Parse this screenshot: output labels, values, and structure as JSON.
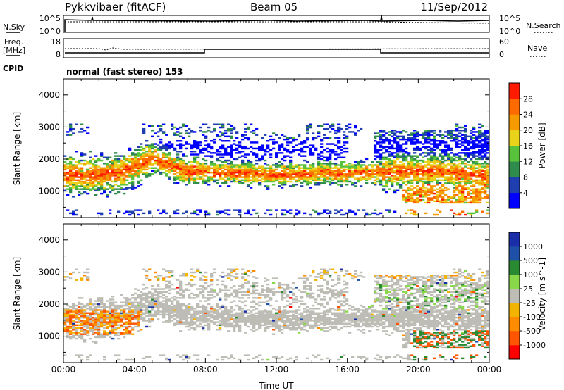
{
  "header": {
    "station": "Pykkvibaer (fitACF)",
    "beam": "Beam 05",
    "date": "11/Sep/2012",
    "cpid_label": "CPID",
    "cpid_value": "normal (fast stereo) 153"
  },
  "noise_panel": {
    "left_label": "N.Sky",
    "left_ticks": [
      "10^5",
      "10^0"
    ],
    "right_label": "N.Search",
    "right_ticks": [
      "10^5",
      "10^0"
    ]
  },
  "freq_panel": {
    "left_label_1": "Freq.",
    "left_label_2": "[MHz]",
    "left_ticks": [
      "18",
      "8"
    ],
    "right_label": "Nave",
    "right_ticks": [
      "60",
      "0"
    ]
  },
  "colors": {
    "power_scale": [
      "#0000ff",
      "#1f3fb0",
      "#2f8c4c",
      "#58c23c",
      "#e8d21a",
      "#f59a00",
      "#ff6a00",
      "#ff1a00"
    ],
    "velocity_scale": [
      "#ff0000",
      "#ff5500",
      "#ff8c00",
      "#f2b400",
      "#bdbdb5",
      "#88d84a",
      "#2a8a32",
      "#1f50a8",
      "#1a2eaa"
    ],
    "velocity_gray": "#c8c8c0"
  },
  "chart_data": [
    {
      "type": "heatmap",
      "name": "power",
      "xlabel": "",
      "ylabel": "Slant Range [km]",
      "x_ticks": [
        "00:00",
        "04:00",
        "08:00",
        "12:00",
        "16:00",
        "20:00",
        "00:00"
      ],
      "x_range_hours": [
        0,
        24
      ],
      "y_ticks": [
        "1000",
        "2000",
        "3000",
        "4000"
      ],
      "y_range_km": [
        180,
        4500
      ],
      "colorbar_label": "Power [dB]",
      "colorbar_ticks": [
        "4",
        "8",
        "12",
        "16",
        "20",
        "24",
        "28"
      ],
      "colorbar_range": [
        0,
        32
      ]
    },
    {
      "type": "heatmap",
      "name": "velocity",
      "xlabel": "Time UT",
      "ylabel": "Slant Range [km]",
      "x_ticks": [
        "00:00",
        "04:00",
        "08:00",
        "12:00",
        "16:00",
        "20:00",
        "00:00"
      ],
      "x_range_hours": [
        0,
        24
      ],
      "y_ticks": [
        "1000",
        "2000",
        "3000",
        "4000"
      ],
      "y_range_km": [
        180,
        4500
      ],
      "colorbar_label": "Velocity [m s^-1]",
      "colorbar_ticks": [
        "1000",
        "500",
        "100",
        "25",
        "-25",
        "-100",
        "-500",
        "-1000"
      ]
    }
  ]
}
